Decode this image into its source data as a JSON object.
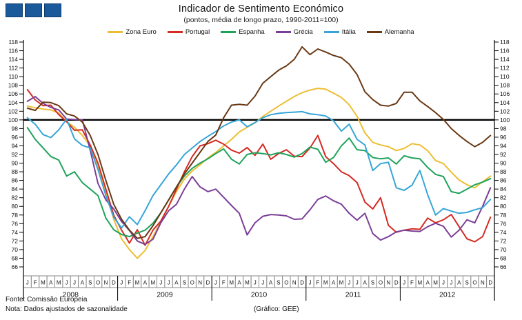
{
  "logo": {
    "color": "#1A5A9B",
    "border_color": "#0D3C6B",
    "squares": 3
  },
  "footer": {
    "source": "Fonte: Comissão Europeia",
    "note": "Nota: Dados ajustados de sazonalidade",
    "credit": "(Gráfico: GEE)"
  },
  "chart_data": {
    "type": "line",
    "title": "Indicador de Sentimento Económico",
    "subtitle": "(pontos, média de longo prazo, 1990-2011=100)",
    "legend_position": "top",
    "grid": false,
    "y_axis": {
      "min": 66,
      "max": 118,
      "step": 2,
      "sides": "both"
    },
    "reference_line": 100,
    "reference_line_color": "#000000",
    "x_axis": {
      "years": [
        "2008",
        "2009",
        "2010",
        "2011",
        "2012"
      ],
      "month_letters": [
        "J",
        "F",
        "M",
        "A",
        "M",
        "J",
        "J",
        "A",
        "S",
        "O",
        "N",
        "D"
      ]
    },
    "series": [
      {
        "name": "Zona Euro",
        "slug": "zona-euro",
        "color": "#EDBE33",
        "values": [
          103.2,
          102.8,
          102.5,
          102.3,
          101.6,
          99.6,
          98.3,
          96.4,
          94.0,
          89.5,
          83.5,
          77.0,
          72.5,
          70.0,
          68.0,
          69.8,
          73.0,
          76.5,
          80.0,
          83.5,
          86.3,
          88.2,
          89.6,
          91.2,
          92.5,
          94.0,
          95.5,
          97.2,
          98.3,
          99.3,
          100.8,
          102.0,
          103.2,
          104.3,
          105.4,
          106.3,
          106.9,
          107.3,
          107.1,
          106.2,
          105.2,
          103.5,
          100.8,
          97.0,
          94.8,
          94.2,
          93.8,
          92.9,
          93.4,
          94.5,
          94.2,
          92.9,
          90.6,
          89.9,
          87.9,
          86.1,
          85.0,
          84.3,
          85.7,
          87.0
        ]
      },
      {
        "name": "Portugal",
        "slug": "portugal",
        "color": "#D42B22",
        "values": [
          107.0,
          104.6,
          103.3,
          103.4,
          101.2,
          99.6,
          97.6,
          97.7,
          94.2,
          90.0,
          84.0,
          78.0,
          74.5,
          71.5,
          74.6,
          71.0,
          74.5,
          76.6,
          80.0,
          84.0,
          88.0,
          91.5,
          94.0,
          94.5,
          95.3,
          94.4,
          93.0,
          92.3,
          93.6,
          91.8,
          94.4,
          90.9,
          92.2,
          93.1,
          91.6,
          91.5,
          93.5,
          96.4,
          91.5,
          89.9,
          88.0,
          87.1,
          85.5,
          81.0,
          79.4,
          82.0,
          75.6,
          74.0,
          74.5,
          74.8,
          74.7,
          77.3,
          76.2,
          76.9,
          78.1,
          75.3,
          72.5,
          71.8,
          73.0,
          77.5
        ]
      },
      {
        "name": "Espanha",
        "slug": "espanha",
        "color": "#1EA35B",
        "values": [
          98.2,
          95.5,
          93.5,
          91.5,
          90.7,
          87.0,
          88.0,
          85.5,
          84.0,
          82.5,
          77.3,
          74.6,
          73.5,
          73.0,
          73.8,
          74.5,
          76.1,
          78.5,
          81.5,
          84.5,
          87.0,
          88.8,
          90.0,
          91.0,
          92.2,
          93.3,
          90.9,
          89.8,
          92.0,
          92.4,
          92.2,
          91.9,
          92.4,
          92.0,
          91.4,
          92.2,
          93.7,
          93.2,
          90.2,
          91.3,
          94.0,
          95.8,
          93.1,
          92.9,
          91.3,
          91.0,
          91.2,
          89.8,
          91.7,
          91.2,
          91.0,
          89.0,
          87.4,
          86.9,
          83.4,
          83.0,
          84.0,
          85.0,
          85.6,
          86.4
        ]
      },
      {
        "name": "Grécia",
        "slug": "grecia",
        "color": "#7A3E97",
        "values": [
          104.3,
          105.4,
          103.8,
          102.9,
          102.3,
          100.2,
          100.1,
          100.0,
          93.0,
          85.3,
          81.5,
          79.4,
          76.5,
          74.4,
          72.0,
          71.2,
          72.4,
          76.2,
          79.0,
          80.5,
          84.0,
          86.9,
          84.5,
          83.4,
          84.0,
          82.1,
          80.2,
          78.4,
          73.4,
          76.2,
          77.7,
          78.1,
          78.0,
          77.8,
          77.0,
          77.1,
          79.2,
          81.6,
          82.4,
          81.3,
          80.5,
          78.4,
          76.8,
          78.4,
          73.7,
          72.2,
          73.0,
          74.1,
          74.5,
          74.3,
          74.2,
          75.3,
          76.1,
          75.4,
          72.9,
          74.5,
          76.9,
          76.2,
          80.0,
          84.3
        ]
      },
      {
        "name": "Itália",
        "slug": "italia",
        "color": "#36A5D8",
        "values": [
          100.5,
          99.0,
          96.6,
          95.9,
          97.7,
          100.2,
          95.6,
          94.1,
          93.5,
          88.5,
          82.5,
          77.5,
          75.0,
          77.6,
          75.8,
          79.0,
          82.5,
          85.0,
          87.5,
          89.6,
          92.0,
          93.5,
          95.0,
          96.2,
          97.3,
          98.6,
          99.5,
          100.0,
          98.4,
          99.4,
          100.5,
          101.2,
          101.5,
          101.7,
          101.8,
          101.9,
          101.4,
          101.2,
          100.9,
          99.8,
          97.4,
          99.0,
          95.5,
          94.2,
          88.3,
          89.9,
          90.2,
          84.3,
          83.7,
          84.9,
          88.3,
          82.7,
          78.0,
          79.5,
          78.9,
          78.4,
          78.6,
          79.2,
          79.7,
          81.6
        ]
      },
      {
        "name": "Alemanha",
        "slug": "alemanha",
        "color": "#693814",
        "values": [
          102.7,
          102.2,
          104.1,
          104.0,
          103.3,
          101.4,
          100.9,
          99.5,
          96.4,
          92.0,
          86.0,
          80.5,
          77.0,
          74.5,
          72.6,
          73.0,
          75.5,
          78.5,
          81.5,
          84.5,
          87.5,
          90.0,
          92.5,
          95.0,
          96.5,
          100.5,
          103.4,
          103.6,
          103.4,
          105.5,
          108.5,
          110.0,
          111.5,
          112.5,
          114.0,
          116.9,
          115.1,
          116.4,
          115.7,
          114.9,
          114.4,
          112.9,
          110.5,
          106.5,
          104.7,
          103.4,
          103.2,
          103.8,
          106.4,
          106.4,
          104.4,
          103.1,
          101.7,
          100.1,
          98.0,
          96.4,
          95.0,
          93.8,
          94.8,
          96.4
        ]
      }
    ]
  }
}
